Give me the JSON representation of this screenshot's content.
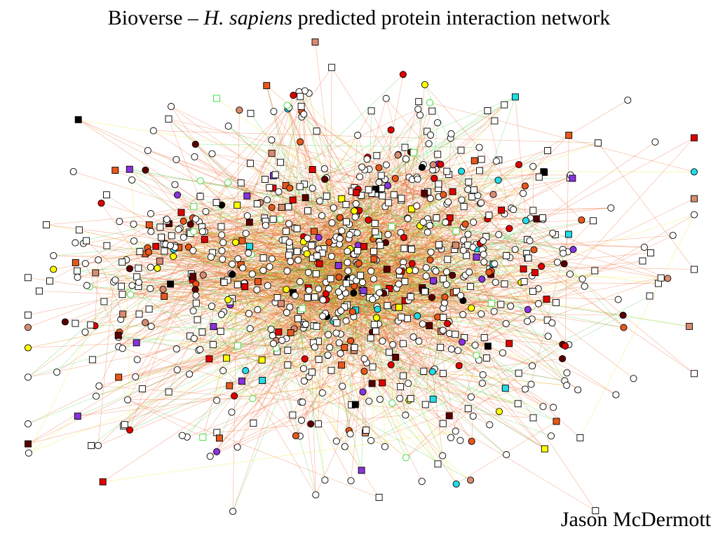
{
  "slide": {
    "title_prefix": "Bioverse – ",
    "title_species": "H. sapiens",
    "title_suffix": " predicted protein interaction network",
    "author": "Jason McDermott"
  },
  "palette": {
    "edge_orange": "#e8581c",
    "edge_green": "#33cc33",
    "edge_yellow": "#e6e600",
    "node_white": "#ffffff",
    "node_red": "#e00000",
    "node_dark_red": "#5a0000",
    "node_orange": "#e8581c",
    "node_salmon": "#d98c72",
    "node_yellow": "#ffff00",
    "node_purple": "#8833dd",
    "node_cyan": "#22dde8",
    "node_black": "#000000",
    "node_green_outline": "#33dd33",
    "node_stroke": "#000000"
  }
}
